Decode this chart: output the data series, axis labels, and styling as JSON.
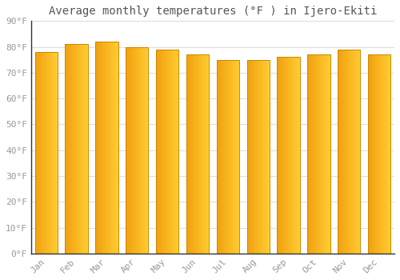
{
  "title": "Average monthly temperatures (°F ) in Ijero-Ekiti",
  "months": [
    "Jan",
    "Feb",
    "Mar",
    "Apr",
    "May",
    "Jun",
    "Jul",
    "Aug",
    "Sep",
    "Oct",
    "Nov",
    "Dec"
  ],
  "values": [
    78,
    81,
    82,
    80,
    79,
    77,
    75,
    75,
    76,
    77,
    79,
    77
  ],
  "bar_color_left": "#F0A010",
  "bar_color_right": "#FFCC30",
  "bar_edge_color": "#CC8800",
  "background_color": "#FFFFFF",
  "grid_color": "#DDDDDD",
  "ylim": [
    0,
    90
  ],
  "yticks": [
    0,
    10,
    20,
    30,
    40,
    50,
    60,
    70,
    80,
    90
  ],
  "ytick_labels": [
    "0°F",
    "10°F",
    "20°F",
    "30°F",
    "40°F",
    "50°F",
    "60°F",
    "70°F",
    "80°F",
    "90°F"
  ],
  "title_fontsize": 10,
  "tick_fontsize": 8,
  "font_color": "#999999"
}
